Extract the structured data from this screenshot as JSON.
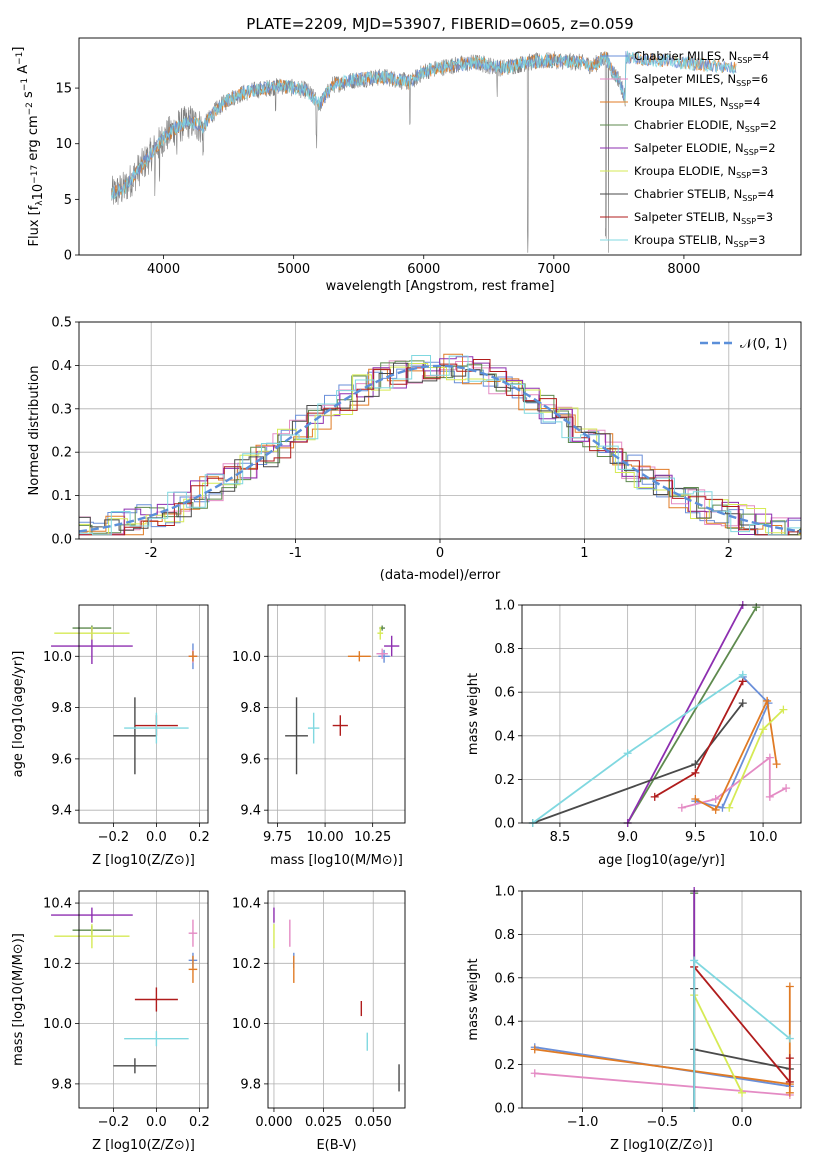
{
  "title": "PLATE=2209, MJD=53907, FIBERID=0605, z=0.059",
  "colors": {
    "Chabrier MILES": "#6a8fd9",
    "Salpeter MILES": "#e48bc4",
    "Kroupa MILES": "#e07b25",
    "Chabrier ELODIE": "#5e8a4e",
    "Salpeter ELODIE": "#8d2fb0",
    "Kroupa ELODIE": "#d6ea55",
    "Chabrier STELIB": "#4a4a4a",
    "Salpeter STELIB": "#b01c1c",
    "Kroupa STELIB": "#80d8e0",
    "data": "#808080",
    "normal": "#5b8fd9"
  },
  "chart_data": [
    {
      "type": "line",
      "panel": "spectrum",
      "xlabel": "wavelength [Angstrom, rest frame]",
      "ylabel": "Flux [f",
      "ylabel_parts": {
        "base": "Flux [f",
        "sub": "λ",
        "mid": "10",
        "sup1": "−17",
        "rest": " erg cm",
        "sup2": "−2",
        "rest2": " s",
        "sup3": "−1",
        "rest3": " A",
        "sup4": "−1",
        "end": "]"
      },
      "xlim": [
        3350,
        8900
      ],
      "ylim": [
        0,
        19.5
      ],
      "xticks": [
        4000,
        5000,
        6000,
        7000,
        8000
      ],
      "yticks": [
        0,
        5,
        10,
        15
      ],
      "legend_position": "right",
      "legend": [
        {
          "name": "Chabrier MILES",
          "n": "4"
        },
        {
          "name": "Salpeter MILES",
          "n": "6"
        },
        {
          "name": "Kroupa MILES",
          "n": "4"
        },
        {
          "name": "Chabrier ELODIE",
          "n": "2"
        },
        {
          "name": "Salpeter ELODIE",
          "n": "2"
        },
        {
          "name": "Kroupa ELODIE",
          "n": "3"
        },
        {
          "name": "Chabrier STELIB",
          "n": "4"
        },
        {
          "name": "Salpeter STELIB",
          "n": "3"
        },
        {
          "name": "Kroupa STELIB",
          "n": "3"
        }
      ],
      "nssp_label": "N",
      "nssp_sub": "SSP",
      "continuum": [
        [
          3600,
          5.5
        ],
        [
          3700,
          6.0
        ],
        [
          3800,
          7.5
        ],
        [
          3900,
          9.0
        ],
        [
          4000,
          10.5
        ],
        [
          4100,
          11.5
        ],
        [
          4200,
          12.0
        ],
        [
          4300,
          11.5
        ],
        [
          4400,
          13.0
        ],
        [
          4500,
          14.0
        ],
        [
          4600,
          14.5
        ],
        [
          4700,
          14.8
        ],
        [
          4800,
          15.0
        ],
        [
          4900,
          15.2
        ],
        [
          5000,
          15.0
        ],
        [
          5100,
          14.8
        ],
        [
          5200,
          13.5
        ],
        [
          5300,
          15.3
        ],
        [
          5500,
          15.8
        ],
        [
          5700,
          16.0
        ],
        [
          5900,
          15.5
        ],
        [
          6000,
          16.5
        ],
        [
          6200,
          17.0
        ],
        [
          6400,
          17.3
        ],
        [
          6600,
          16.8
        ],
        [
          6800,
          17.3
        ],
        [
          7000,
          17.5
        ],
        [
          7200,
          17.3
        ],
        [
          7300,
          17.0
        ],
        [
          7400,
          17.8
        ],
        [
          7450,
          16.5
        ],
        [
          7500,
          15.8
        ],
        [
          7550,
          14.0
        ]
      ],
      "absorption_features": [
        [
          3934,
          3.0
        ],
        [
          3969,
          3.5
        ],
        [
          4102,
          2.0
        ],
        [
          4305,
          2.5
        ],
        [
          4861,
          1.5
        ],
        [
          5175,
          3.5
        ],
        [
          5893,
          4.0
        ],
        [
          6563,
          2.0
        ],
        [
          6800,
          15.0
        ],
        [
          7400,
          16.0
        ]
      ]
    },
    {
      "type": "step",
      "panel": "residuals",
      "xlabel": "(data-model)/error",
      "ylabel": "Normed distribution",
      "xlim": [
        -2.5,
        2.5
      ],
      "ylim": [
        0,
        0.5
      ],
      "xticks": [
        -2,
        -1,
        0,
        1,
        2
      ],
      "yticks": [
        0.0,
        0.1,
        0.2,
        0.3,
        0.4,
        0.5
      ],
      "legend": "𝒩(0, 1)"
    },
    {
      "type": "errorbar",
      "panel": "age-Z",
      "xlabel": "Z [log10(Z/Z⊙)]",
      "ylabel": "age  [log10(age/yr)]",
      "xlim": [
        -0.36,
        0.24
      ],
      "ylim": [
        9.35,
        10.2
      ],
      "xticks": [
        -0.2,
        0.0,
        0.2
      ],
      "yticks": [
        9.4,
        9.6,
        9.8,
        10.0
      ],
      "points": [
        {
          "series": "Chabrier MILES",
          "x": 0.17,
          "y": 10.0,
          "xe": 0.04,
          "ye": 0.1
        },
        {
          "series": "Salpeter MILES",
          "x": 0.17,
          "y": 10.0,
          "xe": 0.04,
          "ye": 0.05
        },
        {
          "series": "Kroupa MILES",
          "x": 0.17,
          "y": 10.0,
          "xe": 0.04,
          "ye": 0.04
        },
        {
          "series": "Chabrier ELODIE",
          "x": -0.3,
          "y": 10.11,
          "xe": 0.18,
          "ye": 0.02
        },
        {
          "series": "Salpeter ELODIE",
          "x": -0.3,
          "y": 10.04,
          "xe": 0.38,
          "ye": 0.14
        },
        {
          "series": "Kroupa ELODIE",
          "x": -0.3,
          "y": 10.09,
          "xe": 0.35,
          "ye": 0.05
        },
        {
          "series": "Chabrier STELIB",
          "x": -0.1,
          "y": 9.69,
          "xe": 0.2,
          "ye": 0.3
        },
        {
          "series": "Salpeter STELIB",
          "x": 0.0,
          "y": 9.73,
          "xe": 0.2,
          "ye": 0.08
        },
        {
          "series": "Kroupa STELIB",
          "x": 0.0,
          "y": 9.72,
          "xe": 0.3,
          "ye": 0.12
        }
      ]
    },
    {
      "type": "errorbar",
      "panel": "age-mass",
      "xlabel": "mass [log10(M/M⊙)]",
      "ylabel": "",
      "xlim": [
        9.7,
        10.42
      ],
      "ylim": [
        9.35,
        10.2
      ],
      "xticks": [
        9.75,
        10.0,
        10.25
      ],
      "yticks": [
        9.4,
        9.6,
        9.8,
        10.0
      ],
      "points": [
        {
          "series": "Chabrier MILES",
          "x": 10.31,
          "y": 10.0,
          "xe": 0.06,
          "ye": 0.05
        },
        {
          "series": "Salpeter MILES",
          "x": 10.3,
          "y": 10.01,
          "xe": 0.06,
          "ye": 0.04
        },
        {
          "series": "Kroupa MILES",
          "x": 10.18,
          "y": 10.0,
          "xe": 0.12,
          "ye": 0.04
        },
        {
          "series": "Chabrier ELODIE",
          "x": 10.3,
          "y": 10.11,
          "xe": 0.03,
          "ye": 0.02
        },
        {
          "series": "Salpeter ELODIE",
          "x": 10.35,
          "y": 10.04,
          "xe": 0.08,
          "ye": 0.08
        },
        {
          "series": "Kroupa ELODIE",
          "x": 10.29,
          "y": 10.09,
          "xe": 0.03,
          "ye": 0.05
        },
        {
          "series": "Chabrier STELIB",
          "x": 9.85,
          "y": 9.69,
          "xe": 0.12,
          "ye": 0.3
        },
        {
          "series": "Salpeter STELIB",
          "x": 10.08,
          "y": 9.73,
          "xe": 0.08,
          "ye": 0.08
        },
        {
          "series": "Kroupa STELIB",
          "x": 9.94,
          "y": 9.72,
          "xe": 0.06,
          "ye": 0.12
        }
      ]
    },
    {
      "type": "line",
      "panel": "mass-weight-age",
      "xlabel": "age  [log10(age/yr)]",
      "ylabel": "mass weight",
      "xlim": [
        8.22,
        10.28
      ],
      "ylim": [
        0,
        1
      ],
      "xticks": [
        8.5,
        9.0,
        9.5,
        10.0
      ],
      "yticks": [
        0.0,
        0.2,
        0.4,
        0.6,
        0.8,
        1.0
      ],
      "series": [
        {
          "name": "Chabrier MILES",
          "points": [
            [
              9.5,
              0.1
            ],
            [
              9.7,
              0.07
            ],
            [
              10.04,
              0.55
            ],
            [
              9.85,
              0.67
            ]
          ]
        },
        {
          "name": "Salpeter MILES",
          "points": [
            [
              9.4,
              0.07
            ],
            [
              9.65,
              0.11
            ],
            [
              10.05,
              0.3
            ],
            [
              10.05,
              0.12
            ],
            [
              10.17,
              0.16
            ]
          ]
        },
        {
          "name": "Kroupa MILES",
          "points": [
            [
              9.5,
              0.11
            ],
            [
              9.65,
              0.06
            ],
            [
              10.03,
              0.56
            ],
            [
              10.1,
              0.27
            ]
          ]
        },
        {
          "name": "Chabrier ELODIE",
          "points": [
            [
              9.0,
              0.0
            ],
            [
              9.95,
              0.99
            ]
          ]
        },
        {
          "name": "Salpeter ELODIE",
          "points": [
            [
              9.0,
              0.0
            ],
            [
              9.85,
              1.0
            ]
          ]
        },
        {
          "name": "Kroupa ELODIE",
          "points": [
            [
              9.75,
              0.07
            ],
            [
              10.0,
              0.43
            ],
            [
              10.15,
              0.52
            ]
          ]
        },
        {
          "name": "Chabrier STELIB",
          "points": [
            [
              8.3,
              0.0
            ],
            [
              9.5,
              0.27
            ],
            [
              9.85,
              0.55
            ]
          ]
        },
        {
          "name": "Salpeter STELIB",
          "points": [
            [
              9.2,
              0.12
            ],
            [
              9.5,
              0.23
            ],
            [
              9.85,
              0.65
            ]
          ]
        },
        {
          "name": "Kroupa STELIB",
          "points": [
            [
              8.3,
              0.0
            ],
            [
              9.0,
              0.32
            ],
            [
              9.85,
              0.68
            ]
          ]
        }
      ]
    },
    {
      "type": "errorbar",
      "panel": "mass-Z",
      "xlabel": "Z [log10(Z/Z⊙)]",
      "ylabel": "mass [log10(M/M⊙)]",
      "xlim": [
        -0.36,
        0.24
      ],
      "ylim": [
        9.72,
        10.44
      ],
      "xticks": [
        -0.2,
        0.0,
        0.2
      ],
      "yticks": [
        9.8,
        10.0,
        10.2,
        10.4
      ],
      "points": [
        {
          "series": "Chabrier MILES",
          "x": 0.17,
          "y": 10.21,
          "xe": 0.04,
          "ye": 0.05
        },
        {
          "series": "Salpeter MILES",
          "x": 0.17,
          "y": 10.3,
          "xe": 0.04,
          "ye": 0.09
        },
        {
          "series": "Kroupa MILES",
          "x": 0.17,
          "y": 10.18,
          "xe": 0.04,
          "ye": 0.09
        },
        {
          "series": "Chabrier ELODIE",
          "x": -0.3,
          "y": 10.31,
          "xe": 0.18,
          "ye": 0.03
        },
        {
          "series": "Salpeter ELODIE",
          "x": -0.3,
          "y": 10.36,
          "xe": 0.38,
          "ye": 0.05
        },
        {
          "series": "Kroupa ELODIE",
          "x": -0.3,
          "y": 10.29,
          "xe": 0.35,
          "ye": 0.08
        },
        {
          "series": "Chabrier STELIB",
          "x": -0.1,
          "y": 9.86,
          "xe": 0.2,
          "ye": 0.05
        },
        {
          "series": "Salpeter STELIB",
          "x": 0.0,
          "y": 10.08,
          "xe": 0.2,
          "ye": 0.08
        },
        {
          "series": "Kroupa STELIB",
          "x": 0.0,
          "y": 9.95,
          "xe": 0.3,
          "ye": 0.05
        }
      ]
    },
    {
      "type": "errorbar",
      "panel": "mass-ebv",
      "xlabel": "E(B-V)",
      "ylabel": "",
      "xlim": [
        -0.003,
        0.066
      ],
      "ylim": [
        9.72,
        10.44
      ],
      "xticks": [
        0.0,
        0.025,
        0.05
      ],
      "xticklabels": [
        "0.000",
        "0.025",
        "0.050"
      ],
      "yticks": [
        9.8,
        10.0,
        10.2,
        10.4
      ],
      "points": [
        {
          "series": "Kroupa ELODIE",
          "x": 0.0,
          "y": 10.29,
          "ye": 0.08
        },
        {
          "series": "Salpeter ELODIE",
          "x": 0.0,
          "y": 10.36,
          "ye": 0.05
        },
        {
          "series": "Salpeter MILES",
          "x": 0.008,
          "y": 10.3,
          "ye": 0.09
        },
        {
          "series": "Chabrier MILES",
          "x": 0.01,
          "y": 10.21,
          "ye": 0.05
        },
        {
          "series": "Kroupa MILES",
          "x": 0.01,
          "y": 10.18,
          "ye": 0.09
        },
        {
          "series": "Salpeter STELIB",
          "x": 0.044,
          "y": 10.05,
          "ye": 0.05
        },
        {
          "series": "Kroupa STELIB",
          "x": 0.047,
          "y": 9.94,
          "ye": 0.06
        },
        {
          "series": "Chabrier STELIB",
          "x": 0.063,
          "y": 9.82,
          "ye": 0.09
        }
      ]
    },
    {
      "type": "line",
      "panel": "mass-weight-Z",
      "xlabel": "Z [log10(Z/Z⊙)]",
      "ylabel": "mass weight",
      "xlim": [
        -1.38,
        0.37
      ],
      "ylim": [
        0,
        1
      ],
      "xticks": [
        -1.0,
        -0.5,
        0.0
      ],
      "yticks": [
        0.0,
        0.2,
        0.4,
        0.6,
        0.8,
        1.0
      ],
      "series": [
        {
          "name": "Chabrier MILES",
          "points": [
            [
              -1.3,
              0.28
            ],
            [
              0.3,
              0.1
            ]
          ]
        },
        {
          "name": "Salpeter MILES",
          "points": [
            [
              -1.3,
              0.16
            ],
            [
              0.3,
              0.06
            ]
          ]
        },
        {
          "name": "Kroupa MILES",
          "points": [
            [
              -1.3,
              0.27
            ],
            [
              0.3,
              0.11
            ]
          ]
        },
        {
          "name": "Kroupa MILES verticals",
          "points": [
            [
              0.3,
              0.07
            ],
            [
              0.3,
              0.56
            ]
          ]
        },
        {
          "name": "Chabrier ELODIE",
          "points": [
            [
              -0.3,
              0.0
            ],
            [
              -0.3,
              0.99
            ]
          ]
        },
        {
          "name": "Salpeter ELODIE",
          "points": [
            [
              -0.3,
              0.0
            ],
            [
              -0.3,
              1.0
            ]
          ]
        },
        {
          "name": "Kroupa ELODIE",
          "points": [
            [
              -0.3,
              0.52
            ],
            [
              0.0,
              0.07
            ]
          ]
        },
        {
          "name": "Chabrier STELIB",
          "points": [
            [
              -0.3,
              0.0
            ],
            [
              -0.3,
              0.55
            ],
            [
              -0.3,
              0.27
            ],
            [
              0.3,
              0.18
            ]
          ]
        },
        {
          "name": "Salpeter STELIB",
          "points": [
            [
              -0.3,
              0.65
            ],
            [
              0.3,
              0.12
            ],
            [
              0.3,
              0.23
            ]
          ]
        },
        {
          "name": "Kroupa STELIB",
          "points": [
            [
              -0.3,
              0.0
            ],
            [
              -0.3,
              0.68
            ],
            [
              0.3,
              0.32
            ]
          ]
        }
      ]
    }
  ]
}
